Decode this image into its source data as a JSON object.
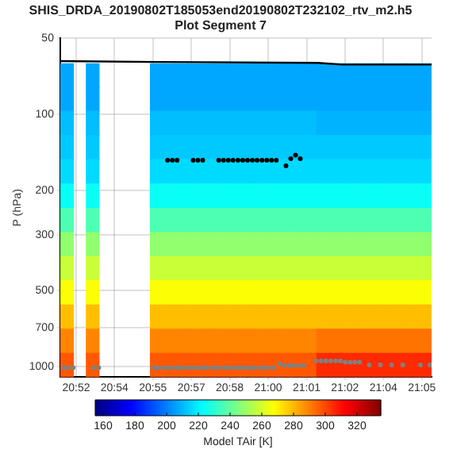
{
  "chart_data": {
    "type": "scatter",
    "title": "SHIS_DRDA_20190802T185053end20190802T232102_rtv_m2.h5",
    "subtitle": "Plot Segment 7",
    "ylabel": "P (hPa)",
    "clabel": "Model TAir [K]",
    "xlim": [
      20.8617,
      21.0953
    ],
    "xticks": [
      {
        "value": 20.8717,
        "label": "20:52"
      },
      {
        "value": 20.8958,
        "label": "20:54"
      },
      {
        "value": 20.92,
        "label": "20:55"
      },
      {
        "value": 20.9442,
        "label": "20:57"
      },
      {
        "value": 20.9683,
        "label": "20:58"
      },
      {
        "value": 20.9925,
        "label": "21:00"
      },
      {
        "value": 21.0167,
        "label": "21:01"
      },
      {
        "value": 21.0408,
        "label": "21:02"
      },
      {
        "value": 21.065,
        "label": "21:04"
      },
      {
        "value": 21.0892,
        "label": "21:05"
      }
    ],
    "ylim": [
      1100,
      50
    ],
    "yticks": [
      50,
      100,
      200,
      300,
      500,
      700,
      1000
    ],
    "log": "y",
    "grid": true,
    "legend": false,
    "clim": [
      155,
      335
    ],
    "cticks": [
      160,
      180,
      200,
      220,
      240,
      260,
      280,
      300,
      320
    ],
    "x": [
      20.8657,
      20.8818,
      20.9221,
      20.9302,
      20.9382,
      20.9463,
      20.9543,
      20.9624,
      20.9705,
      20.9785,
      20.9866,
      20.9946,
      21.0027,
      21.0107,
      21.0188,
      21.0268,
      21.0349,
      21.043,
      21.051,
      21.0591,
      21.0671,
      21.0752,
      21.0832,
      21.0913
    ],
    "series": [
      {
        "marker": "square",
        "values": [
          70,
          70,
          70,
          70,
          70,
          70,
          70,
          70,
          70,
          70,
          70,
          70,
          70,
          70,
          70,
          70,
          70,
          70,
          70,
          70,
          70,
          70,
          70,
          70
        ],
        "cvalues": [
          207,
          207,
          207,
          207,
          207,
          207,
          207,
          207,
          207,
          207,
          207,
          207,
          207,
          207,
          207,
          207,
          207,
          207,
          207,
          207,
          207,
          207,
          207,
          207
        ]
      },
      {
        "marker": "square",
        "values": [
          87,
          87,
          87,
          87,
          87,
          87,
          87,
          87,
          87,
          87,
          87,
          87,
          87,
          87,
          87,
          87,
          87,
          87,
          87,
          87,
          87,
          87,
          87,
          87
        ],
        "cvalues": [
          207,
          207,
          207,
          207,
          207,
          207,
          207,
          207,
          207,
          207,
          207,
          207,
          207,
          207,
          207,
          207,
          207,
          207,
          207,
          207,
          207,
          207,
          207,
          207
        ]
      },
      {
        "marker": "square",
        "x": [
          20.8657,
          20.8818,
          20.9221,
          20.9302,
          20.9382,
          20.9463,
          20.9543,
          20.9624,
          20.9705,
          20.9785,
          20.9866,
          20.9946,
          21.0027,
          21.0107,
          21.0188
        ],
        "values": [
          108,
          108,
          108,
          108,
          108,
          108,
          108,
          108,
          108,
          108,
          108,
          108,
          108,
          108,
          108
        ],
        "cvalues": [
          211,
          211,
          211,
          211,
          211,
          211,
          211,
          211,
          211,
          211,
          211,
          211,
          211,
          211,
          211
        ]
      },
      {
        "marker": "square",
        "x": [
          21.0268,
          21.0349,
          21.043,
          21.051,
          21.0591,
          21.0671,
          21.0752,
          21.0832,
          21.0913
        ],
        "values": [
          108,
          108,
          108,
          108,
          108,
          108,
          108,
          108,
          108
        ],
        "cvalues": [
          209,
          209,
          209,
          209,
          209,
          209,
          209,
          209,
          209
        ]
      },
      {
        "marker": "square",
        "values": [
          135,
          135,
          135,
          135,
          135,
          135,
          135,
          135,
          135,
          135,
          135,
          135,
          135,
          135,
          135,
          135,
          135,
          135,
          135,
          135,
          135,
          135,
          135,
          135
        ],
        "cvalues": [
          213,
          213,
          213,
          213,
          213,
          213,
          213,
          213,
          213,
          213,
          213,
          213,
          213,
          213,
          213,
          213,
          213,
          213,
          213,
          213,
          213,
          213,
          213,
          213
        ]
      },
      {
        "marker": "square",
        "values": [
          168,
          168,
          168,
          168,
          168,
          168,
          168,
          168,
          168,
          168,
          168,
          168,
          168,
          168,
          168,
          168,
          168,
          168,
          168,
          168,
          168,
          168,
          168,
          168
        ],
        "cvalues": [
          216,
          216,
          216,
          216,
          216,
          216,
          216,
          216,
          216,
          216,
          216,
          216,
          216,
          216,
          216,
          216,
          216,
          216,
          216,
          216,
          216,
          216,
          216,
          216
        ]
      },
      {
        "marker": "square",
        "values": [
          210,
          210,
          210,
          210,
          210,
          210,
          210,
          210,
          210,
          210,
          210,
          210,
          210,
          210,
          210,
          210,
          210,
          210,
          210,
          210,
          210,
          210,
          210,
          210
        ],
        "cvalues": [
          224,
          224,
          224,
          224,
          224,
          224,
          224,
          224,
          224,
          224,
          224,
          224,
          224,
          224,
          224,
          224,
          224,
          224,
          224,
          224,
          224,
          224,
          224,
          224
        ]
      },
      {
        "marker": "square",
        "values": [
          262,
          262,
          262,
          262,
          262,
          262,
          262,
          262,
          262,
          262,
          262,
          262,
          262,
          262,
          262,
          262,
          262,
          262,
          262,
          262,
          262,
          262,
          262,
          262
        ],
        "cvalues": [
          236,
          236,
          236,
          236,
          236,
          236,
          236,
          236,
          236,
          236,
          236,
          236,
          236,
          236,
          236,
          236,
          236,
          236,
          236,
          236,
          236,
          236,
          236,
          236
        ]
      },
      {
        "marker": "square",
        "values": [
          327,
          327,
          327,
          327,
          327,
          327,
          327,
          327,
          327,
          327,
          327,
          327,
          327,
          327,
          327,
          327,
          327,
          327,
          327,
          327,
          327,
          327,
          327,
          327
        ],
        "cvalues": [
          248,
          248,
          248,
          248,
          248,
          248,
          248,
          248,
          248,
          248,
          248,
          248,
          248,
          248,
          248,
          248,
          248,
          248,
          248,
          248,
          248,
          248,
          248,
          248
        ]
      },
      {
        "marker": "square",
        "values": [
          407,
          407,
          407,
          407,
          407,
          407,
          407,
          407,
          407,
          407,
          407,
          407,
          407,
          407,
          407,
          407,
          407,
          407,
          407,
          407,
          407,
          407,
          407,
          407
        ],
        "cvalues": [
          258,
          258,
          258,
          258,
          258,
          258,
          258,
          258,
          258,
          258,
          258,
          258,
          258,
          258,
          258,
          258,
          258,
          258,
          258,
          258,
          258,
          258,
          258,
          258
        ]
      },
      {
        "marker": "square",
        "values": [
          508,
          508,
          508,
          508,
          508,
          508,
          508,
          508,
          508,
          508,
          508,
          508,
          508,
          508,
          508,
          508,
          508,
          508,
          508,
          508,
          508,
          508,
          508,
          508
        ],
        "cvalues": [
          267,
          267,
          267,
          267,
          267,
          267,
          267,
          267,
          267,
          267,
          267,
          267,
          267,
          267,
          267,
          267,
          267,
          267,
          267,
          267,
          267,
          267,
          267,
          267
        ]
      },
      {
        "marker": "square",
        "values": [
          633,
          633,
          633,
          633,
          633,
          633,
          633,
          633,
          633,
          633,
          633,
          633,
          633,
          633,
          633,
          633,
          633,
          633,
          633,
          633,
          633,
          633,
          633,
          633
        ],
        "cvalues": [
          279,
          279,
          279,
          279,
          279,
          279,
          279,
          279,
          279,
          279,
          279,
          279,
          279,
          279,
          279,
          279,
          279,
          279,
          279,
          279,
          279,
          279,
          279,
          279
        ]
      },
      {
        "marker": "square",
        "x": [
          20.8657,
          20.8818,
          20.9221,
          20.9302,
          20.9382,
          20.9463,
          20.9543,
          20.9624,
          20.9705,
          20.9785,
          20.9866,
          20.9946,
          21.0027,
          21.0107,
          21.0188
        ],
        "values": [
          790,
          790,
          790,
          790,
          790,
          790,
          790,
          790,
          790,
          790,
          790,
          790,
          790,
          790,
          790
        ],
        "cvalues": [
          289,
          289,
          289,
          289,
          289,
          289,
          289,
          289,
          289,
          289,
          289,
          289,
          289,
          289,
          289
        ]
      },
      {
        "marker": "square",
        "x": [
          21.0268,
          21.0349,
          21.043,
          21.051,
          21.0591,
          21.0671,
          21.0752,
          21.0832,
          21.0913
        ],
        "values": [
          790,
          790,
          790,
          790,
          790,
          790,
          790,
          790,
          790
        ],
        "cvalues": [
          292,
          292,
          292,
          292,
          292,
          292,
          292,
          292,
          292
        ]
      },
      {
        "marker": "square",
        "x": [
          20.8657,
          20.8818,
          20.9221,
          20.9302,
          20.9382,
          20.9463,
          20.9543,
          20.9624,
          20.9705,
          20.9785,
          20.9866,
          20.9946,
          21.0027,
          21.0107,
          21.0188
        ],
        "values": [
          985,
          985,
          985,
          985,
          985,
          985,
          985,
          985,
          985,
          985,
          985,
          985,
          985,
          985,
          985
        ],
        "cvalues": [
          297,
          297,
          297,
          297,
          297,
          297,
          297,
          297,
          297,
          297,
          297,
          297,
          297,
          297,
          297
        ]
      },
      {
        "marker": "square",
        "x": [
          21.0268,
          21.0349,
          21.043,
          21.051,
          21.0591,
          21.0671,
          21.0752,
          21.0832,
          21.0913
        ],
        "values": [
          985,
          985,
          985,
          985,
          985,
          985,
          985,
          985,
          985
        ],
        "cvalues": [
          305,
          305,
          305,
          305,
          305,
          305,
          305,
          305,
          305
        ]
      },
      {
        "type": "line",
        "color": "#000000",
        "marker": "none",
        "x": [
          20.8617,
          20.9231,
          21.0238,
          21.0389,
          21.0953
        ],
        "values": [
          61.5,
          62,
          62.5,
          63.5,
          63.5
        ]
      },
      {
        "color": "#000000",
        "marker": "circle",
        "x": [
          20.9292,
          20.9322,
          20.9352,
          20.9453,
          20.9483,
          20.9513,
          20.9614,
          20.9644,
          20.9674,
          20.9704,
          20.9735,
          20.9765,
          20.9795,
          20.9825,
          20.9855,
          20.9886,
          20.9916,
          20.9946,
          20.9976,
          21.0037,
          21.0067,
          21.0097,
          21.0127
        ],
        "values": [
          152,
          152,
          152,
          152,
          152,
          152,
          152,
          152,
          152,
          152,
          152,
          152,
          152,
          152,
          152,
          152,
          152,
          152,
          152,
          160,
          150,
          145,
          150
        ]
      },
      {
        "color": "#808080",
        "marker": "circle",
        "x": [
          20.8637,
          20.8667,
          20.8698,
          20.8828,
          20.8859,
          20.9201,
          20.9231,
          20.9261,
          20.9292,
          20.9322,
          20.9352,
          20.9382,
          20.9413,
          20.9443,
          20.9473,
          20.9503,
          20.9533,
          20.9564,
          20.9594,
          20.9624,
          20.9654,
          20.9684,
          20.9715,
          20.9745,
          20.9775,
          20.9805,
          20.9835,
          20.9866,
          20.9896,
          20.9926,
          20.9956,
          20.9997,
          21.0027,
          21.0057,
          21.0087,
          21.0117,
          21.0148,
          21.0228,
          21.0258,
          21.0288,
          21.0319,
          21.0349,
          21.0379,
          21.0409,
          21.044,
          21.047,
          21.05,
          21.0561,
          21.0631,
          21.0702,
          21.0772,
          21.0883,
          21.0943
        ],
        "values": [
          1010,
          1010,
          1010,
          1010,
          1010,
          1010,
          1010,
          1010,
          1010,
          1010,
          1010,
          1010,
          1010,
          1010,
          1010,
          1010,
          1010,
          1010,
          1010,
          1010,
          1010,
          1010,
          1010,
          1010,
          1010,
          1010,
          1010,
          1010,
          1010,
          1010,
          1010,
          975,
          990,
          990,
          990,
          990,
          990,
          950,
          950,
          950,
          950,
          950,
          950,
          960,
          960,
          960,
          960,
          985,
          985,
          985,
          985,
          985,
          985
        ]
      }
    ]
  }
}
